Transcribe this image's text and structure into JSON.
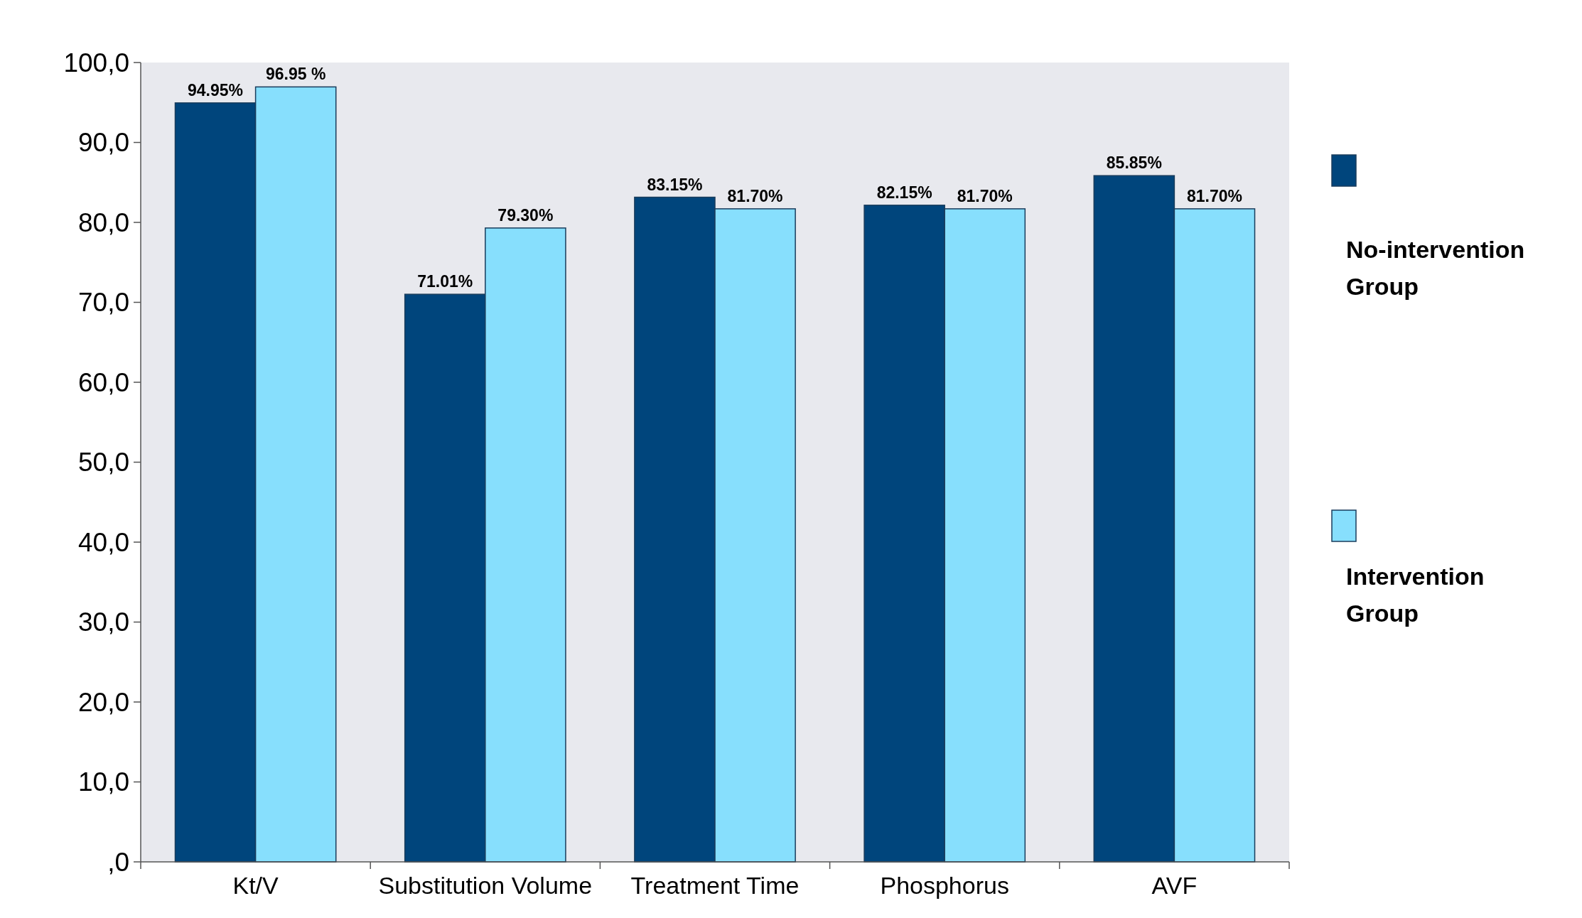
{
  "chart_data": {
    "type": "bar",
    "categories": [
      "Kt/V",
      "Substitution Volume",
      "Treatment Time",
      "Phosphorus",
      "AVF"
    ],
    "series": [
      {
        "name": "No-intervention Group",
        "color": "#00457c",
        "values": [
          94.95,
          71.01,
          83.15,
          82.15,
          85.85
        ],
        "value_labels": [
          "94.95%",
          "71.01%",
          "83.15%",
          "82.15%",
          "85.85%"
        ]
      },
      {
        "name": "Intervention Group",
        "color": "#87dffd",
        "values": [
          96.95,
          79.3,
          81.7,
          81.7,
          81.7
        ],
        "value_labels": [
          "96.95 %",
          "79.30%",
          "81.70%",
          "81.70%",
          "81.70%"
        ]
      }
    ],
    "ylim": [
      0,
      100
    ],
    "yticks": [
      {
        "value": 0,
        "label": ",0"
      },
      {
        "value": 10,
        "label": "10,0"
      },
      {
        "value": 20,
        "label": "20,0"
      },
      {
        "value": 30,
        "label": "30,0"
      },
      {
        "value": 40,
        "label": "40,0"
      },
      {
        "value": 50,
        "label": "50,0"
      },
      {
        "value": 60,
        "label": "60,0"
      },
      {
        "value": 70,
        "label": "70,0"
      },
      {
        "value": 80,
        "label": "80,0"
      },
      {
        "value": 90,
        "label": "90,0"
      },
      {
        "value": 100,
        "label": "100,0"
      }
    ],
    "legend": "right"
  }
}
